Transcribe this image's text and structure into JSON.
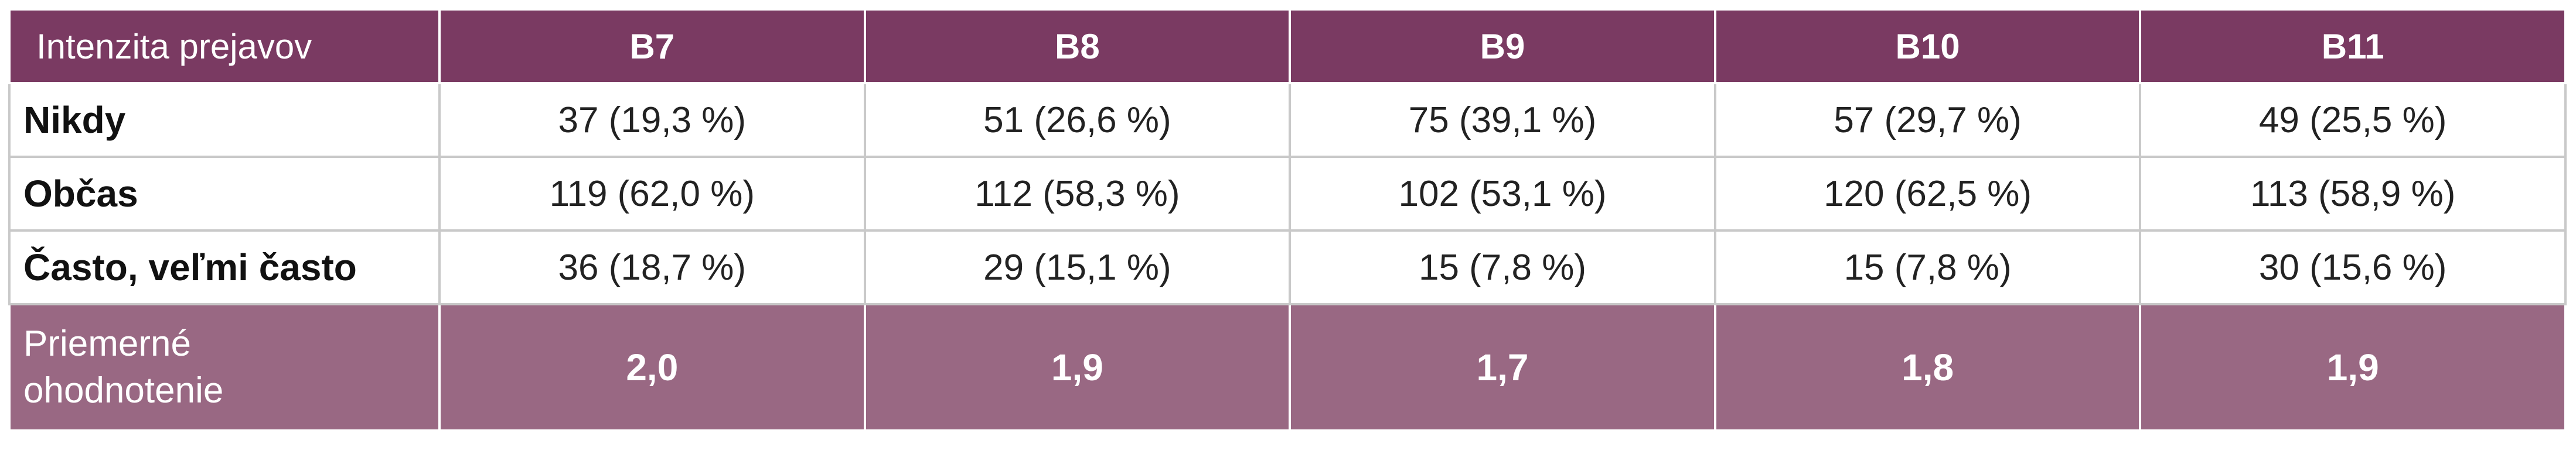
{
  "table": {
    "corner_label": "Intenzita prejavov",
    "columns": [
      "B7",
      "B8",
      "B9",
      "B10",
      "B11"
    ],
    "rows": [
      {
        "label": "Nikdy",
        "values": [
          "37 (19,3 %)",
          "51 (26,6 %)",
          "75 (39,1 %)",
          "57 (29,7 %)",
          "49 (25,5 %)"
        ]
      },
      {
        "label": "Občas",
        "values": [
          "119 (62,0 %)",
          "112 (58,3 %)",
          "102 (53,1 %)",
          "120 (62,5 %)",
          "113 (58,9 %)"
        ]
      },
      {
        "label": "Často, veľmi často",
        "values": [
          "36 (18,7 %)",
          "29 (15,1 %)",
          "15 (7,8 %)",
          "15 (7,8 %)",
          "30 (15,6 %)"
        ]
      }
    ],
    "average": {
      "label_line1": "Priemerné",
      "label_line2": "ohodnotenie",
      "values": [
        "2,0",
        "1,9",
        "1,7",
        "1,8",
        "1,9"
      ]
    }
  },
  "colors": {
    "header_bg": "#7a3a62",
    "average_bg": "#996883",
    "grid": "#c9c9c9"
  }
}
